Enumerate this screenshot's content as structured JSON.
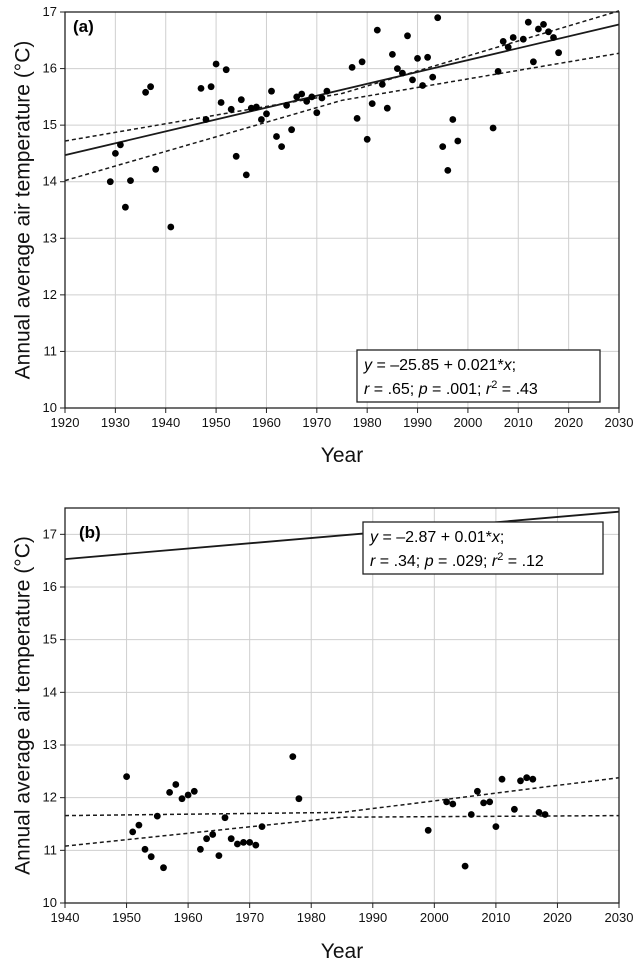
{
  "chart_data": [
    {
      "type": "scatter",
      "panel_label": "(a)",
      "xlabel": "Year",
      "ylabel": "Annual average air temperature (°C)",
      "xlim": [
        1920,
        2030
      ],
      "ylim": [
        10,
        17
      ],
      "xticks": [
        1920,
        1930,
        1940,
        1950,
        1960,
        1970,
        1980,
        1990,
        2000,
        2010,
        2020,
        2030
      ],
      "yticks": [
        10,
        11,
        12,
        13,
        14,
        15,
        16,
        17
      ],
      "grid": true,
      "annotation": {
        "line1": "y = –25.85 + 0.021*x;",
        "line2": "r = .65; p = .001; r² = .43",
        "position": "bottom-right"
      },
      "fit": {
        "intercept": -25.85,
        "slope": 0.021,
        "x_range": [
          1920,
          2030
        ]
      },
      "ci_lower": [
        [
          1920,
          14.02
        ],
        [
          1975,
          15.44
        ],
        [
          2030,
          16.27
        ]
      ],
      "ci_upper": [
        [
          1920,
          14.72
        ],
        [
          1975,
          15.56
        ],
        [
          2030,
          17.02
        ]
      ],
      "points": [
        [
          1929,
          14.0
        ],
        [
          1930,
          14.5
        ],
        [
          1931,
          14.65
        ],
        [
          1932,
          13.55
        ],
        [
          1933,
          14.02
        ],
        [
          1936,
          15.58
        ],
        [
          1937,
          15.68
        ],
        [
          1938,
          14.22
        ],
        [
          1941,
          13.2
        ],
        [
          1947,
          15.65
        ],
        [
          1948,
          15.1
        ],
        [
          1949,
          15.68
        ],
        [
          1950,
          16.08
        ],
        [
          1951,
          15.4
        ],
        [
          1952,
          15.98
        ],
        [
          1953,
          15.28
        ],
        [
          1954,
          14.45
        ],
        [
          1955,
          15.45
        ],
        [
          1956,
          14.12
        ],
        [
          1957,
          15.3
        ],
        [
          1958,
          15.32
        ],
        [
          1959,
          15.1
        ],
        [
          1960,
          15.2
        ],
        [
          1961,
          15.6
        ],
        [
          1962,
          14.8
        ],
        [
          1963,
          14.62
        ],
        [
          1964,
          15.35
        ],
        [
          1965,
          14.92
        ],
        [
          1966,
          15.5
        ],
        [
          1967,
          15.55
        ],
        [
          1968,
          15.42
        ],
        [
          1969,
          15.5
        ],
        [
          1970,
          15.22
        ],
        [
          1971,
          15.48
        ],
        [
          1972,
          15.6
        ],
        [
          1977,
          16.02
        ],
        [
          1978,
          15.12
        ],
        [
          1979,
          16.12
        ],
        [
          1980,
          14.75
        ],
        [
          1981,
          15.38
        ],
        [
          1982,
          16.68
        ],
        [
          1983,
          15.72
        ],
        [
          1984,
          15.3
        ],
        [
          1985,
          16.25
        ],
        [
          1986,
          16.0
        ],
        [
          1987,
          15.92
        ],
        [
          1988,
          16.58
        ],
        [
          1989,
          15.8
        ],
        [
          1990,
          16.18
        ],
        [
          1991,
          15.7
        ],
        [
          1992,
          16.2
        ],
        [
          1993,
          15.85
        ],
        [
          1994,
          16.9
        ],
        [
          1995,
          14.62
        ],
        [
          1996,
          14.2
        ],
        [
          1997,
          15.1
        ],
        [
          1998,
          14.72
        ],
        [
          2005,
          14.95
        ],
        [
          2006,
          15.95
        ],
        [
          2007,
          16.48
        ],
        [
          2008,
          16.38
        ],
        [
          2009,
          16.55
        ],
        [
          2011,
          16.52
        ],
        [
          2012,
          16.82
        ],
        [
          2013,
          16.12
        ],
        [
          2014,
          16.7
        ],
        [
          2015,
          16.78
        ],
        [
          2016,
          16.65
        ],
        [
          2017,
          16.55
        ],
        [
          2018,
          16.28
        ]
      ]
    },
    {
      "type": "scatter",
      "panel_label": "(b)",
      "xlabel": "Year",
      "ylabel": "Annual average air temperature (°C)",
      "xlim": [
        1940,
        2030
      ],
      "ylim": [
        10,
        17.5
      ],
      "xticks": [
        1940,
        1950,
        1960,
        1970,
        1980,
        1990,
        2000,
        2010,
        2020,
        2030
      ],
      "yticks": [
        10,
        11,
        12,
        13,
        14,
        15,
        16,
        17
      ],
      "grid": true,
      "annotation": {
        "line1": "y = –2.87 + 0.01*x;",
        "line2": "r = .34; p = .029; r² = .12",
        "position": "top-right"
      },
      "fit": {
        "intercept": -2.87,
        "slope": 0.01,
        "x_range": [
          1940,
          2030
        ]
      },
      "ci_lower": [
        [
          1940,
          11.08
        ],
        [
          1985,
          11.63
        ],
        [
          2030,
          11.66
        ]
      ],
      "ci_upper": [
        [
          1940,
          11.66
        ],
        [
          1985,
          11.72
        ],
        [
          2030,
          12.38
        ]
      ],
      "points": [
        [
          1950,
          12.4
        ],
        [
          1951,
          11.35
        ],
        [
          1952,
          11.48
        ],
        [
          1953,
          11.02
        ],
        [
          1954,
          10.88
        ],
        [
          1955,
          11.65
        ],
        [
          1956,
          10.67
        ],
        [
          1957,
          12.1
        ],
        [
          1958,
          12.25
        ],
        [
          1959,
          11.98
        ],
        [
          1960,
          12.05
        ],
        [
          1961,
          12.12
        ],
        [
          1962,
          11.02
        ],
        [
          1963,
          11.22
        ],
        [
          1964,
          11.3
        ],
        [
          1965,
          10.9
        ],
        [
          1966,
          11.62
        ],
        [
          1967,
          11.22
        ],
        [
          1968,
          11.12
        ],
        [
          1969,
          11.15
        ],
        [
          1970,
          11.15
        ],
        [
          1971,
          11.1
        ],
        [
          1972,
          11.45
        ],
        [
          1977,
          12.78
        ],
        [
          1978,
          11.98
        ],
        [
          1999,
          11.38
        ],
        [
          2002,
          11.92
        ],
        [
          2003,
          11.88
        ],
        [
          2005,
          10.7
        ],
        [
          2006,
          11.68
        ],
        [
          2007,
          12.12
        ],
        [
          2008,
          11.9
        ],
        [
          2009,
          11.92
        ],
        [
          2010,
          11.45
        ],
        [
          2011,
          12.35
        ],
        [
          2013,
          11.78
        ],
        [
          2014,
          12.32
        ],
        [
          2015,
          12.38
        ],
        [
          2016,
          12.35
        ],
        [
          2017,
          11.72
        ],
        [
          2018,
          11.68
        ]
      ]
    }
  ]
}
